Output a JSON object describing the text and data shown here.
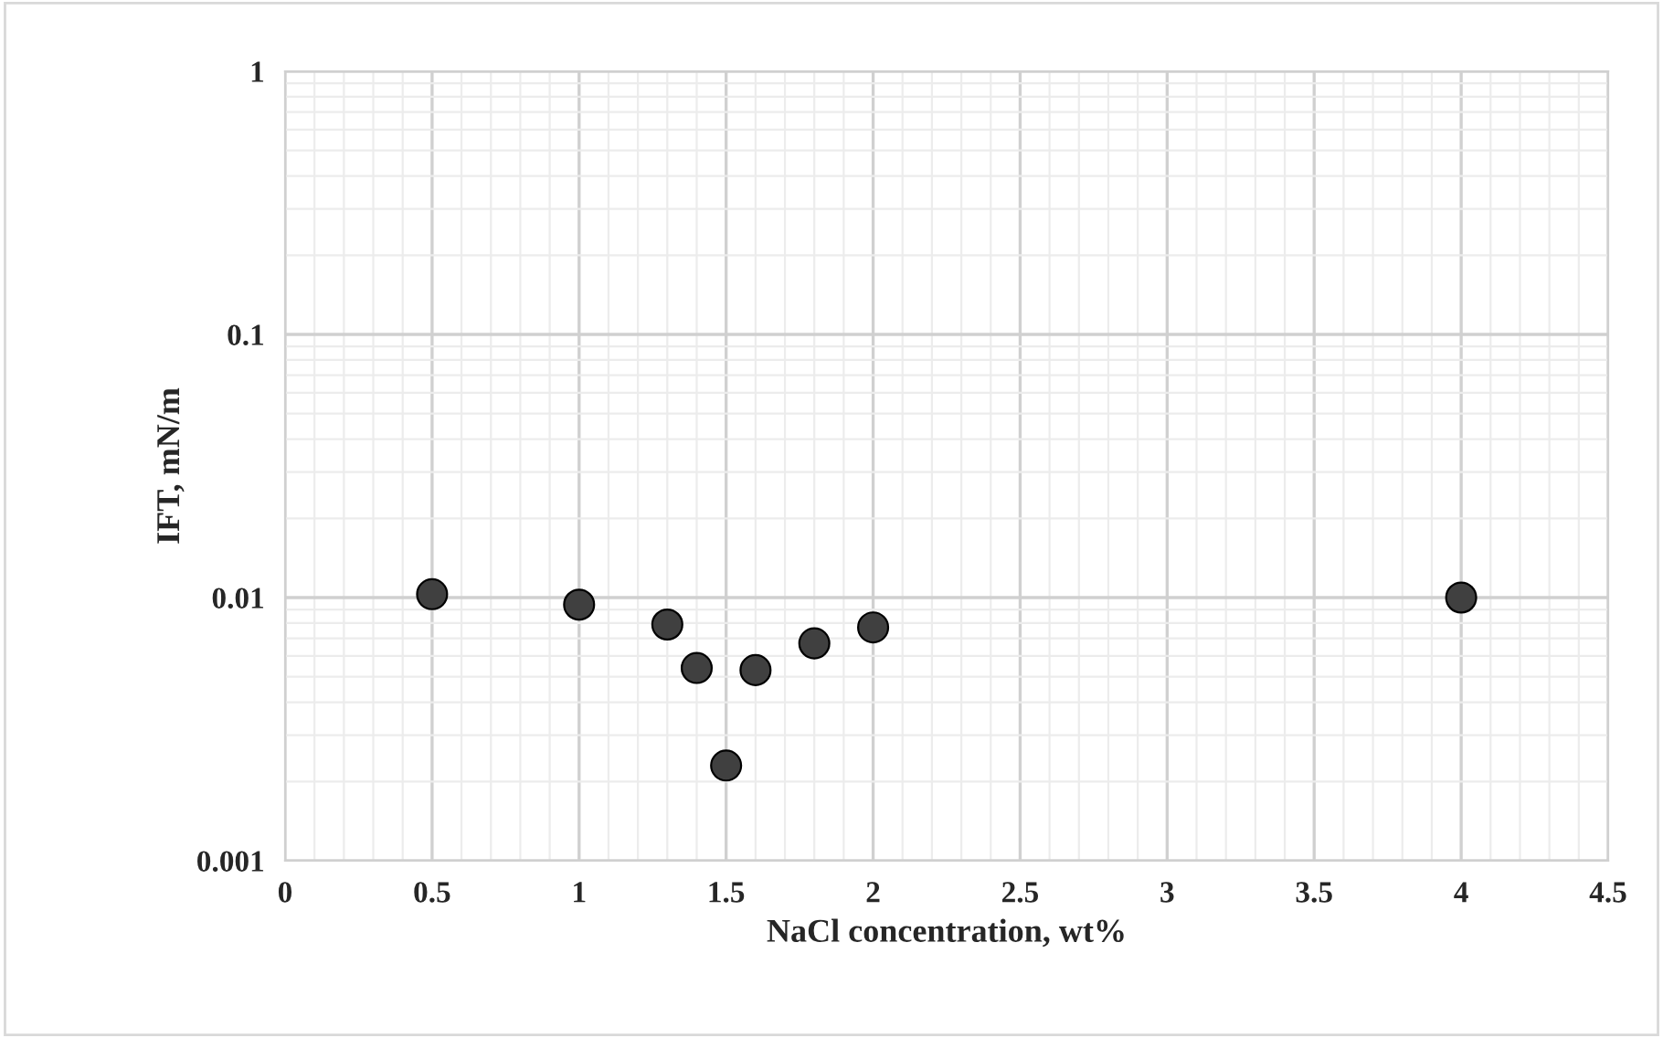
{
  "chart_data": {
    "type": "scatter",
    "xlabel": "NaCl concentration, wt%",
    "ylabel": "IFT, mN/m",
    "x": [
      0.5,
      1,
      1.3,
      1.4,
      1.5,
      1.6,
      1.8,
      2,
      4
    ],
    "series": [
      {
        "color": "#404040",
        "values": [
          0.0103,
          0.0094,
          0.0079,
          0.0054,
          0.0023,
          0.0053,
          0.0067,
          0.0077,
          0.01
        ]
      }
    ],
    "log": "y",
    "marker": "circle",
    "xlim": [
      0,
      4.5
    ],
    "xticks": [
      0,
      0.5,
      1,
      1.5,
      2,
      2.5,
      3,
      3.5,
      4,
      4.5
    ],
    "ylim": [
      0.001,
      1
    ],
    "yticks": [
      0.001,
      0.01,
      0.1,
      1
    ],
    "grid": true
  }
}
